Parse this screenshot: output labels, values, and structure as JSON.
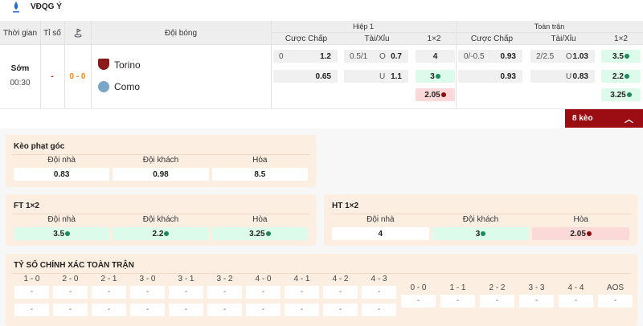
{
  "league": {
    "name": "VĐQG Ý",
    "logo_icon": "serie-a-logo"
  },
  "header": {
    "time": "Thời gian",
    "score": "Tỉ số",
    "corner_icon": "corner-flag-icon",
    "teams": "Đội bóng",
    "h1": "Hiệp 1",
    "ft": "Toàn trận",
    "hdp": "Cược Chấp",
    "ou": "Tài/Xỉu",
    "x12": "1×2"
  },
  "match": {
    "status": "Sớm",
    "time": "00:30",
    "score": "-",
    "ht_score": "0 - 0",
    "home": "Torino",
    "away": "Como"
  },
  "odds": {
    "h1": {
      "hdp": [
        {
          "line": "0",
          "val": "1.2"
        },
        {
          "line": "",
          "val": "0.65"
        }
      ],
      "ou": [
        {
          "line": "0.5/1",
          "side": "O",
          "val": "0.7"
        },
        {
          "line": "",
          "side": "U",
          "val": "1.1"
        }
      ],
      "x12": [
        {
          "val": "4",
          "state": "none"
        },
        {
          "val": "3",
          "state": "up"
        },
        {
          "val": "2.05",
          "state": "down"
        }
      ]
    },
    "ft": {
      "hdp": [
        {
          "line": "0/-0.5",
          "val": "0.93"
        },
        {
          "line": "",
          "val": "0.93"
        }
      ],
      "ou": [
        {
          "line": "2/2.5",
          "side": "O",
          "val": "1.03"
        },
        {
          "line": "",
          "side": "U",
          "val": "0.83"
        }
      ],
      "x12": [
        {
          "val": "3.5",
          "state": "up"
        },
        {
          "val": "2.2",
          "state": "up"
        },
        {
          "val": "3.25",
          "state": "up"
        }
      ]
    }
  },
  "more": {
    "label": "8 kèo",
    "icon": "chevron-up-icon"
  },
  "colors": {
    "accent": "#9b0d12",
    "up": "#1f8a5a",
    "down": "#8b0a0a",
    "panel": "#fdeee2"
  },
  "panels": {
    "corner": {
      "title": "Kèo phạt góc",
      "items": [
        {
          "label": "Đội nhà",
          "val": "0.83",
          "state": "none"
        },
        {
          "label": "Đội khách",
          "val": "0.98",
          "state": "none"
        },
        {
          "label": "Hòa",
          "val": "8.5",
          "state": "none"
        }
      ]
    },
    "ft12": {
      "title": "FT 1×2",
      "items": [
        {
          "label": "Đội nhà",
          "val": "3.5",
          "state": "up"
        },
        {
          "label": "Đội khách",
          "val": "2.2",
          "state": "up"
        },
        {
          "label": "Hòa",
          "val": "3.25",
          "state": "up"
        }
      ]
    },
    "ht12": {
      "title": "HT 1×2",
      "items": [
        {
          "label": "Đội nhà",
          "val": "4",
          "state": "none"
        },
        {
          "label": "Đội khách",
          "val": "3",
          "state": "up"
        },
        {
          "label": "Hòa",
          "val": "2.05",
          "state": "down"
        }
      ]
    }
  },
  "exact": {
    "title": "TỶ SỐ CHÍNH XÁC TOÀN TRẬN",
    "left": [
      {
        "label": "1 - 0",
        "home": "-",
        "away": "-"
      },
      {
        "label": "2 - 0",
        "home": "-",
        "away": "-"
      },
      {
        "label": "2 - 1",
        "home": "-",
        "away": "-"
      },
      {
        "label": "3 - 0",
        "home": "-",
        "away": "-"
      },
      {
        "label": "3 - 1",
        "home": "-",
        "away": "-"
      },
      {
        "label": "3 - 2",
        "home": "-",
        "away": "-"
      },
      {
        "label": "4 - 0",
        "home": "-",
        "away": "-"
      },
      {
        "label": "4 - 1",
        "home": "-",
        "away": "-"
      },
      {
        "label": "4 - 2",
        "home": "-",
        "away": "-"
      },
      {
        "label": "4 - 3",
        "home": "-",
        "away": "-"
      }
    ],
    "right": [
      {
        "label": "0 - 0",
        "val": "-"
      },
      {
        "label": "1 - 1",
        "val": "-"
      },
      {
        "label": "2 - 2",
        "val": "-"
      },
      {
        "label": "3 - 3",
        "val": "-"
      },
      {
        "label": "4 - 4",
        "val": "-"
      },
      {
        "label": "AOS",
        "val": "-"
      }
    ]
  }
}
